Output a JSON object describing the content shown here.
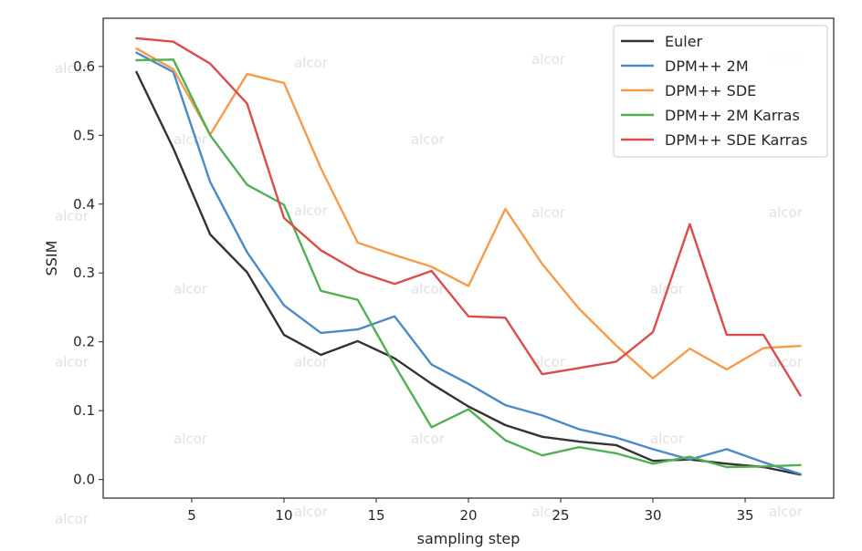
{
  "chart_data": {
    "type": "line",
    "xlabel": "sampling step",
    "ylabel": "SSIM",
    "xlim": [
      0.2,
      39.8
    ],
    "ylim": [
      -0.027,
      0.67
    ],
    "xticks": [
      5,
      10,
      15,
      20,
      25,
      30,
      35
    ],
    "yticks": [
      0.0,
      0.1,
      0.2,
      0.3,
      0.4,
      0.5,
      0.6
    ],
    "ytick_labels": [
      "0.0",
      "0.1",
      "0.2",
      "0.3",
      "0.4",
      "0.5",
      "0.6"
    ],
    "grid": false,
    "legend_position": "top-right",
    "x": [
      2,
      4,
      6,
      8,
      10,
      12,
      14,
      16,
      18,
      20,
      22,
      24,
      26,
      28,
      30,
      32,
      34,
      36,
      38
    ],
    "series": [
      {
        "name": "Euler",
        "color": "#333333",
        "values": [
          0.592,
          0.481,
          0.356,
          0.301,
          0.21,
          0.181,
          0.201,
          0.176,
          0.139,
          0.106,
          0.079,
          0.062,
          0.055,
          0.05,
          0.027,
          0.029,
          0.023,
          0.018,
          0.007
        ]
      },
      {
        "name": "DPM++ 2M",
        "color": "#4a8ac6",
        "values": [
          0.62,
          0.592,
          0.432,
          0.33,
          0.253,
          0.213,
          0.218,
          0.237,
          0.167,
          0.139,
          0.108,
          0.093,
          0.073,
          0.061,
          0.044,
          0.029,
          0.044,
          0.025,
          0.008
        ]
      },
      {
        "name": "DPM++ SDE",
        "color": "#f79b4a",
        "values": [
          0.626,
          0.596,
          0.501,
          0.589,
          0.576,
          0.452,
          0.344,
          0.326,
          0.309,
          0.281,
          0.393,
          0.313,
          0.248,
          0.195,
          0.147,
          0.19,
          0.16,
          0.191,
          0.194
        ]
      },
      {
        "name": "DPM++ 2M Karras",
        "color": "#52b052",
        "values": [
          0.609,
          0.61,
          0.5,
          0.428,
          0.399,
          0.274,
          0.261,
          0.166,
          0.076,
          0.102,
          0.057,
          0.035,
          0.047,
          0.038,
          0.023,
          0.033,
          0.018,
          0.019,
          0.021
        ]
      },
      {
        "name": "DPM++ SDE Karras",
        "color": "#dd4c4c",
        "values": [
          0.641,
          0.636,
          0.604,
          0.546,
          0.38,
          0.333,
          0.302,
          0.284,
          0.303,
          0.237,
          0.235,
          0.153,
          0.162,
          0.171,
          0.214,
          0.371,
          0.21,
          0.21,
          0.122
        ]
      }
    ]
  },
  "watermark": "alcor"
}
